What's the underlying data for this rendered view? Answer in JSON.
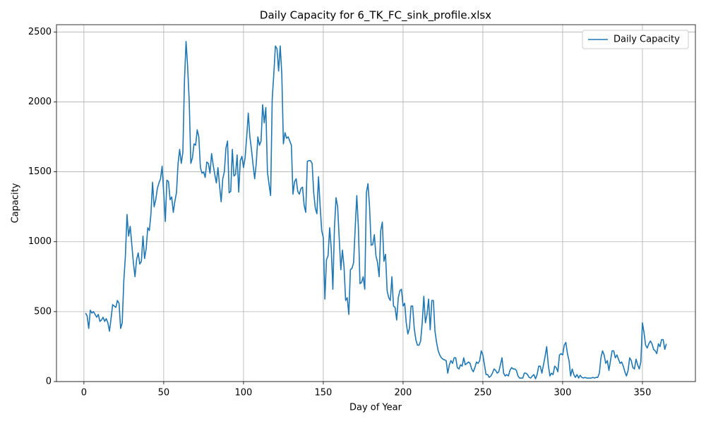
{
  "chart_data": {
    "type": "line",
    "title": "Daily Capacity for 6_TK_FC_sink_profile.xlsx",
    "x_label": "Day of Year",
    "y_label": "Capacity",
    "x": [
      1,
      2,
      3,
      4,
      5,
      6,
      7,
      8,
      9,
      10,
      11,
      12,
      13,
      14,
      15,
      16,
      17,
      18,
      19,
      20,
      21,
      22,
      23,
      24,
      25,
      26,
      27,
      28,
      29,
      30,
      31,
      32,
      33,
      34,
      35,
      36,
      37,
      38,
      39,
      40,
      41,
      42,
      43,
      44,
      45,
      46,
      47,
      48,
      49,
      50,
      51,
      52,
      53,
      54,
      55,
      56,
      57,
      58,
      59,
      60,
      61,
      62,
      63,
      64,
      65,
      66,
      67,
      68,
      69,
      70,
      71,
      72,
      73,
      74,
      75,
      76,
      77,
      78,
      79,
      80,
      81,
      82,
      83,
      84,
      85,
      86,
      87,
      88,
      89,
      90,
      91,
      92,
      93,
      94,
      95,
      96,
      97,
      98,
      99,
      100,
      101,
      102,
      103,
      104,
      105,
      106,
      107,
      108,
      109,
      110,
      111,
      112,
      113,
      114,
      115,
      116,
      117,
      118,
      119,
      120,
      121,
      122,
      123,
      124,
      125,
      126,
      127,
      128,
      129,
      130,
      131,
      132,
      133,
      134,
      135,
      136,
      137,
      138,
      139,
      140,
      141,
      142,
      143,
      144,
      145,
      146,
      147,
      148,
      149,
      150,
      151,
      152,
      153,
      154,
      155,
      156,
      157,
      158,
      159,
      160,
      161,
      162,
      163,
      164,
      165,
      166,
      167,
      168,
      169,
      170,
      171,
      172,
      173,
      174,
      175,
      176,
      177,
      178,
      179,
      180,
      181,
      182,
      183,
      184,
      185,
      186,
      187,
      188,
      189,
      190,
      191,
      192,
      193,
      194,
      195,
      196,
      197,
      198,
      199,
      200,
      201,
      202,
      203,
      204,
      205,
      206,
      207,
      208,
      209,
      210,
      211,
      212,
      213,
      214,
      215,
      216,
      217,
      218,
      219,
      220,
      221,
      222,
      223,
      224,
      225,
      226,
      227,
      228,
      229,
      230,
      231,
      232,
      233,
      234,
      235,
      236,
      237,
      238,
      239,
      240,
      241,
      242,
      243,
      244,
      245,
      246,
      247,
      248,
      249,
      250,
      251,
      252,
      253,
      254,
      255,
      256,
      257,
      258,
      259,
      260,
      261,
      262,
      263,
      264,
      265,
      266,
      267,
      268,
      269,
      270,
      271,
      272,
      273,
      274,
      275,
      276,
      277,
      278,
      279,
      280,
      281,
      282,
      283,
      284,
      285,
      286,
      287,
      288,
      289,
      290,
      291,
      292,
      293,
      294,
      295,
      296,
      297,
      298,
      299,
      300,
      301,
      302,
      303,
      304,
      305,
      306,
      307,
      308,
      309,
      310,
      311,
      312,
      313,
      314,
      315,
      316,
      317,
      318,
      319,
      320,
      321,
      322,
      323,
      324,
      325,
      326,
      327,
      328,
      329,
      330,
      331,
      332,
      333,
      334,
      335,
      336,
      337,
      338,
      339,
      340,
      341,
      342,
      343,
      344,
      345,
      346,
      347,
      348,
      349,
      350,
      351,
      352,
      353,
      354,
      355,
      356,
      357,
      358,
      359,
      360,
      361,
      362,
      363,
      364,
      365
    ],
    "series": [
      {
        "name": "Daily Capacity",
        "color": "#1f77b4",
        "values": [
          490,
          470,
          380,
          510,
          490,
          500,
          480,
          460,
          480,
          430,
          440,
          460,
          430,
          450,
          420,
          360,
          450,
          550,
          540,
          530,
          580,
          560,
          380,
          420,
          720,
          900,
          1195,
          1040,
          1110,
          980,
          850,
          750,
          870,
          920,
          840,
          860,
          1040,
          880,
          950,
          1100,
          1080,
          1200,
          1425,
          1250,
          1300,
          1380,
          1420,
          1450,
          1540,
          1350,
          1145,
          1440,
          1430,
          1300,
          1320,
          1210,
          1290,
          1350,
          1560,
          1660,
          1560,
          1640,
          2150,
          2432,
          2250,
          2000,
          1560,
          1600,
          1700,
          1690,
          1800,
          1750,
          1530,
          1490,
          1500,
          1460,
          1570,
          1560,
          1490,
          1630,
          1550,
          1480,
          1420,
          1530,
          1400,
          1285,
          1450,
          1500,
          1670,
          1720,
          1350,
          1360,
          1660,
          1470,
          1480,
          1620,
          1355,
          1580,
          1610,
          1530,
          1600,
          1750,
          1920,
          1750,
          1660,
          1550,
          1450,
          1560,
          1750,
          1690,
          1720,
          1980,
          1850,
          1960,
          1500,
          1410,
          1330,
          2020,
          2200,
          2400,
          2380,
          2220,
          2400,
          2200,
          1700,
          1780,
          1740,
          1750,
          1720,
          1690,
          1340,
          1430,
          1450,
          1360,
          1340,
          1380,
          1390,
          1260,
          1210,
          1575,
          1580,
          1580,
          1560,
          1350,
          1240,
          1200,
          1465,
          1260,
          1080,
          1030,
          590,
          870,
          900,
          1100,
          950,
          660,
          1100,
          1315,
          1250,
          1020,
          800,
          940,
          820,
          580,
          600,
          480,
          800,
          810,
          850,
          1100,
          1330,
          1100,
          700,
          710,
          750,
          660,
          1350,
          1415,
          1250,
          975,
          980,
          1050,
          900,
          850,
          750,
          1080,
          1140,
          860,
          910,
          650,
          600,
          580,
          750,
          540,
          530,
          440,
          600,
          650,
          660,
          540,
          560,
          420,
          340,
          380,
          540,
          540,
          380,
          300,
          260,
          260,
          290,
          420,
          610,
          420,
          480,
          590,
          370,
          580,
          580,
          360,
          280,
          220,
          190,
          170,
          160,
          155,
          150,
          60,
          120,
          150,
          130,
          170,
          170,
          100,
          90,
          120,
          110,
          170,
          120,
          130,
          140,
          130,
          90,
          70,
          100,
          140,
          130,
          150,
          220,
          190,
          120,
          50,
          50,
          30,
          40,
          60,
          90,
          80,
          60,
          70,
          120,
          170,
          60,
          40,
          50,
          40,
          80,
          100,
          90,
          90,
          80,
          40,
          25,
          25,
          25,
          60,
          60,
          50,
          30,
          25,
          40,
          50,
          20,
          50,
          110,
          110,
          60,
          120,
          180,
          250,
          120,
          40,
          60,
          50,
          110,
          100,
          70,
          190,
          200,
          190,
          260,
          280,
          200,
          150,
          40,
          90,
          50,
          30,
          50,
          25,
          45,
          30,
          25,
          30,
          25,
          25,
          25,
          25,
          30,
          25,
          30,
          30,
          60,
          170,
          220,
          190,
          130,
          150,
          80,
          150,
          220,
          220,
          170,
          190,
          160,
          130,
          140,
          110,
          70,
          40,
          80,
          170,
          150,
          100,
          90,
          160,
          120,
          90,
          140,
          420,
          350,
          260,
          240,
          270,
          290,
          270,
          230,
          220,
          200,
          270,
          250,
          300,
          300,
          230,
          270
        ]
      }
    ],
    "xlim": [
      -17.2,
      383.2
    ],
    "xticks": [
      0,
      50,
      100,
      150,
      200,
      250,
      300,
      350
    ],
    "ylim": [
      0,
      2552
    ],
    "yticks": [
      0,
      500,
      1000,
      1500,
      2000,
      2500
    ],
    "grid": true,
    "legend": "upper right"
  }
}
